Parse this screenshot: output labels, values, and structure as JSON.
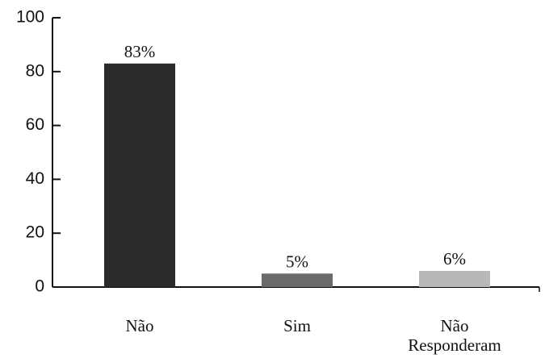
{
  "chart_data": {
    "type": "bar",
    "categories": [
      "Não",
      "Sim",
      "Não Responderam"
    ],
    "values": [
      83,
      5,
      6
    ],
    "value_labels": [
      "83%",
      "5%",
      "6%"
    ],
    "colors": [
      "#2b2b2b",
      "#6a6a6a",
      "#b8b8b8"
    ],
    "ylim": [
      0,
      100
    ],
    "yticks": [
      0,
      20,
      40,
      60,
      80,
      100
    ]
  }
}
